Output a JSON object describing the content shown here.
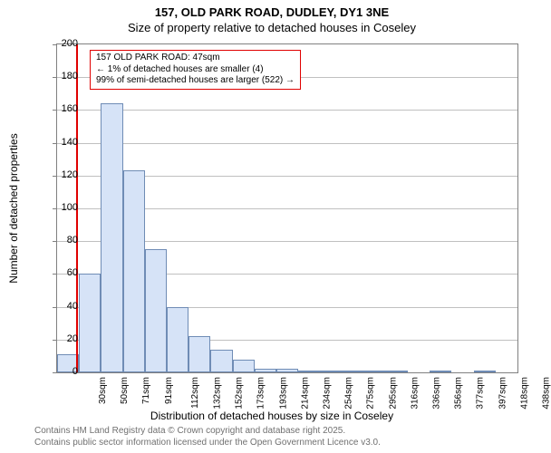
{
  "title_line1": "157, OLD PARK ROAD, DUDLEY, DY1 3NE",
  "title_line2": "Size of property relative to detached houses in Coseley",
  "chart": {
    "type": "histogram",
    "ylim": [
      0,
      200
    ],
    "ytick_step": 20,
    "yticks": [
      0,
      20,
      40,
      60,
      80,
      100,
      120,
      140,
      160,
      180,
      200
    ],
    "categories": [
      "30sqm",
      "50sqm",
      "71sqm",
      "91sqm",
      "112sqm",
      "132sqm",
      "152sqm",
      "173sqm",
      "193sqm",
      "214sqm",
      "234sqm",
      "254sqm",
      "275sqm",
      "295sqm",
      "316sqm",
      "336sqm",
      "356sqm",
      "377sqm",
      "397sqm",
      "418sqm",
      "438sqm"
    ],
    "values": [
      11,
      60,
      164,
      123,
      75,
      40,
      22,
      14,
      8,
      2,
      2,
      1,
      1,
      1,
      1,
      1,
      0,
      1,
      0,
      1,
      0
    ],
    "bar_fill": "#d6e3f7",
    "bar_border": "#6f8cb5",
    "background_color": "#ffffff",
    "grid_color": "#c0c0c0",
    "axis_color": "#808080",
    "marker_value": 47,
    "marker_color": "#e00000",
    "x_range": [
      30,
      448
    ],
    "ylabel": "Number of detached properties",
    "xlabel": "Distribution of detached houses by size in Coseley",
    "label_fontsize": 12,
    "tick_fontsize": 10,
    "title_fontsize": 13
  },
  "annotation": {
    "line1": "157 OLD PARK ROAD: 47sqm",
    "line2": "← 1% of detached houses are smaller (4)",
    "line3": "99% of semi-detached houses are larger (522) →"
  },
  "footer_line1": "Contains HM Land Registry data © Crown copyright and database right 2025.",
  "footer_line2": "Contains public sector information licensed under the Open Government Licence v3.0."
}
